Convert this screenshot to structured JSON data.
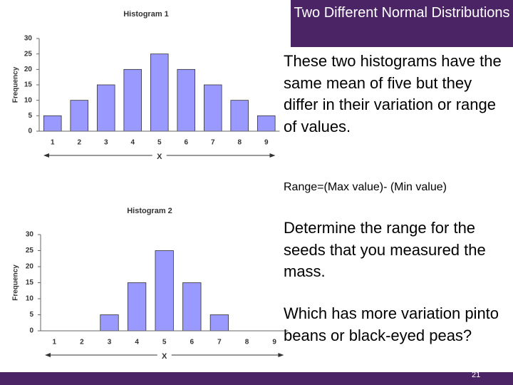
{
  "header": {
    "title": "Two Different Normal Distributions"
  },
  "text": {
    "paragraphs": [
      "These two  histograms have the same mean of five but they differ in their variation or range of values.",
      "Range=(Max value)- (Min value)",
      "Determine the range for the seeds that you measured the mass.",
      "Which has more variation pinto beans or black-eyed peas?"
    ],
    "page_number": "21"
  },
  "chart_data": [
    {
      "type": "bar",
      "title": "Histogram 1",
      "x_label": "X",
      "y_label": "Frequency",
      "categories": [
        "1",
        "2",
        "3",
        "4",
        "5",
        "6",
        "7",
        "8",
        "9"
      ],
      "values": [
        5,
        10,
        15,
        20,
        25,
        20,
        15,
        10,
        5
      ],
      "color": "#9999ff",
      "ylim": [
        0,
        30
      ],
      "yticks": [
        0,
        5,
        10,
        15,
        20,
        25,
        30
      ],
      "grid": false
    },
    {
      "type": "bar",
      "title": "Histogram 2",
      "x_label": "X",
      "y_label": "Frequency",
      "categories": [
        "1",
        "2",
        "3",
        "4",
        "5",
        "6",
        "7",
        "8",
        "9"
      ],
      "values": [
        0,
        0,
        5,
        15,
        25,
        15,
        5,
        0,
        0
      ],
      "color": "#9999ff",
      "ylim": [
        0,
        30
      ],
      "yticks": [
        0,
        5,
        10,
        15,
        20,
        25,
        30
      ],
      "grid": false
    }
  ]
}
